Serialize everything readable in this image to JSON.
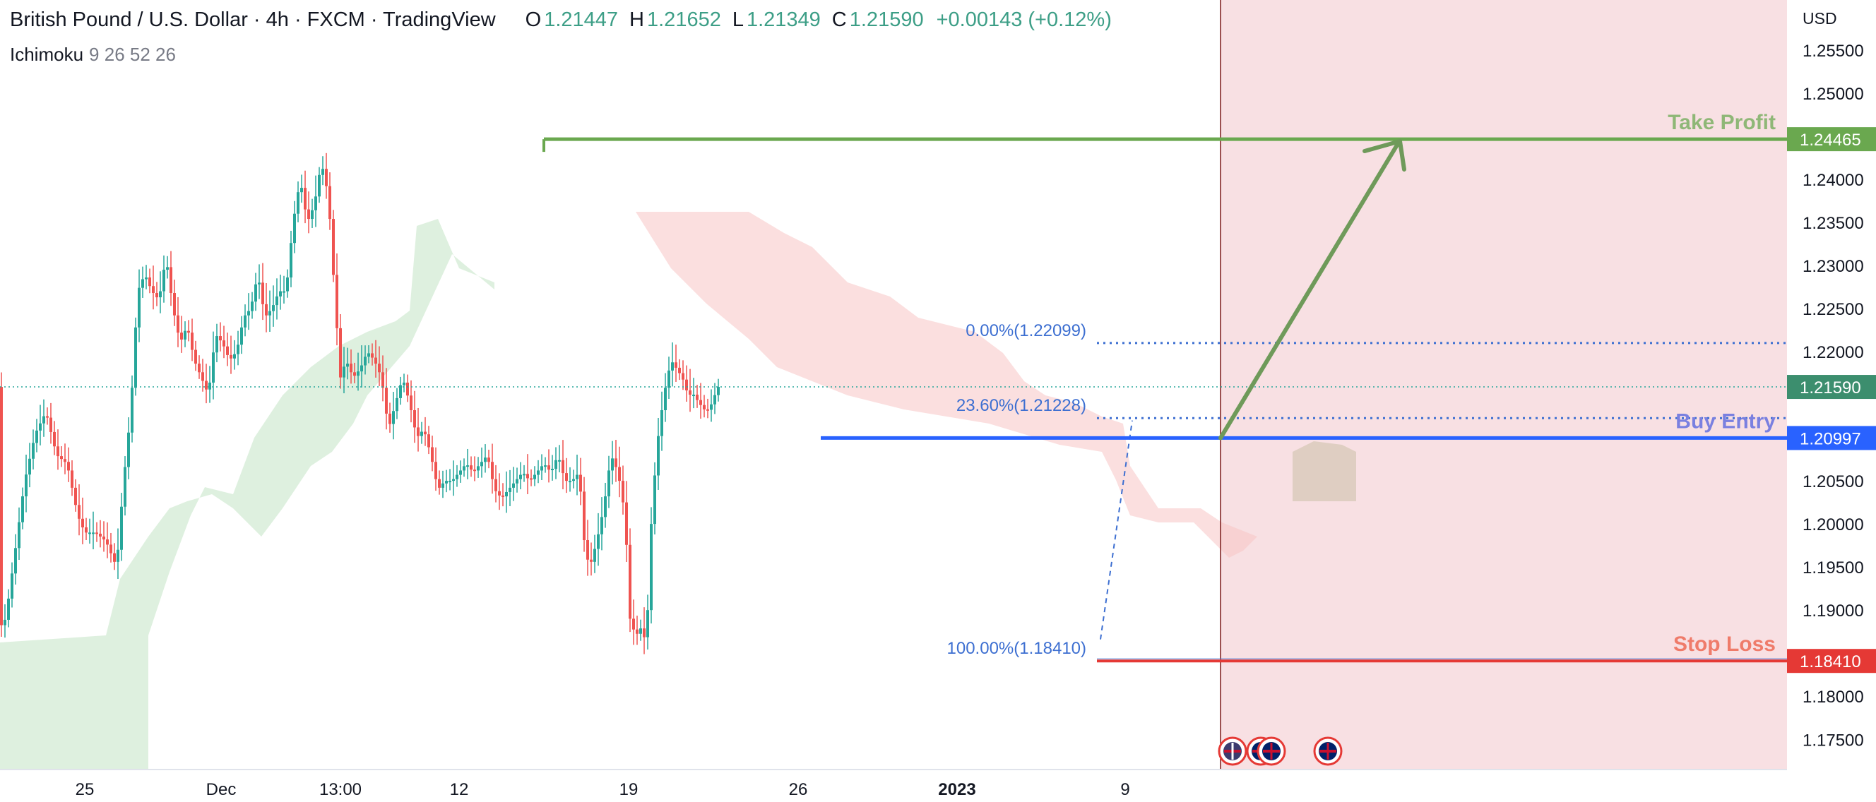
{
  "header": {
    "symbol": "British Pound / U.S. Dollar · 4h · FXCM · TradingView",
    "open_label": "O",
    "open": "1.21447",
    "high_label": "H",
    "high": "1.21652",
    "low_label": "L",
    "low": "1.21349",
    "close_label": "C",
    "close": "1.21590",
    "change": "+0.00143 (+0.12%)"
  },
  "indicator": {
    "name": "Ichimoku",
    "params": "9 26 52 26"
  },
  "colors": {
    "up": "#26a69a",
    "down": "#ef5350",
    "cloud_bull": "#c8e6c9",
    "cloud_bear": "#f8c4c4",
    "take_profit": "#6aa84f",
    "entry": "#2962ff",
    "stop": "#e53935",
    "fib": "#3d6fd1",
    "arrow": "#6f9a5a",
    "zone": "#f6d6da"
  },
  "chart_data": {
    "type": "candlestick",
    "y_axis": {
      "currency": "USD",
      "range": [
        1.1715,
        1.2608
      ],
      "ticks": [
        "1.25500",
        "1.25000",
        "1.24000",
        "1.23500",
        "1.23000",
        "1.22500",
        "1.22000",
        "1.20500",
        "1.20000",
        "1.19500",
        "1.19000",
        "1.18000",
        "1.17500"
      ]
    },
    "x_axis": {
      "ticks": [
        "25",
        "Dec",
        "13:00",
        "12",
        "19",
        "26",
        "2023",
        "9"
      ]
    },
    "levels": [
      {
        "label": "Take Profit",
        "value": "1.24465"
      },
      {
        "label": "Buy Entry",
        "value": "1.20997"
      },
      {
        "label": "Stop Loss",
        "value": "1.18410"
      }
    ],
    "current_price": "1.21590",
    "fibonacci": [
      {
        "label": "0.00%(1.22099)",
        "value": 1.22099
      },
      {
        "label": "23.60%(1.21228)",
        "value": 1.21228
      },
      {
        "label": "100.00%(1.18410)",
        "value": 1.1841
      }
    ],
    "price_path": [
      [
        0,
        1.188
      ],
      [
        8,
        1.189
      ],
      [
        20,
        1.196
      ],
      [
        35,
        1.205
      ],
      [
        50,
        1.2105
      ],
      [
        65,
        1.213
      ],
      [
        80,
        1.208
      ],
      [
        95,
        1.207
      ],
      [
        110,
        1.201
      ],
      [
        120,
        1.199
      ],
      [
        135,
        1.199
      ],
      [
        150,
        1.198
      ],
      [
        165,
        1.195
      ],
      [
        175,
        1.205
      ],
      [
        185,
        1.213
      ],
      [
        195,
        1.227
      ],
      [
        205,
        1.229
      ],
      [
        215,
        1.227
      ],
      [
        225,
        1.226
      ],
      [
        235,
        1.231
      ],
      [
        245,
        1.225
      ],
      [
        255,
        1.221
      ],
      [
        265,
        1.223
      ],
      [
        275,
        1.219
      ],
      [
        285,
        1.217
      ],
      [
        295,
        1.215
      ],
      [
        305,
        1.222
      ],
      [
        315,
        1.221
      ],
      [
        325,
        1.219
      ],
      [
        335,
        1.22
      ],
      [
        345,
        1.224
      ],
      [
        355,
        1.225
      ],
      [
        365,
        1.229
      ],
      [
        375,
        1.224
      ],
      [
        385,
        1.225
      ],
      [
        395,
        1.227
      ],
      [
        405,
        1.227
      ],
      [
        415,
        1.235
      ],
      [
        425,
        1.24
      ],
      [
        435,
        1.235
      ],
      [
        445,
        1.237
      ],
      [
        455,
        1.242
      ],
      [
        465,
        1.238
      ],
      [
        475,
        1.225
      ],
      [
        482,
        1.217
      ],
      [
        490,
        1.219
      ],
      [
        500,
        1.217
      ],
      [
        510,
        1.218
      ],
      [
        520,
        1.22
      ],
      [
        530,
        1.219
      ],
      [
        540,
        1.217
      ],
      [
        550,
        1.211
      ],
      [
        560,
        1.214
      ],
      [
        570,
        1.217
      ],
      [
        580,
        1.214
      ],
      [
        590,
        1.21
      ],
      [
        600,
        1.211
      ],
      [
        610,
        1.208
      ],
      [
        620,
        1.204
      ],
      [
        630,
        1.205
      ],
      [
        640,
        1.205
      ],
      [
        650,
        1.206
      ],
      [
        660,
        1.207
      ],
      [
        670,
        1.206
      ],
      [
        680,
        1.207
      ],
      [
        690,
        1.208
      ],
      [
        700,
        1.204
      ],
      [
        710,
        1.203
      ],
      [
        720,
        1.204
      ],
      [
        730,
        1.205
      ],
      [
        740,
        1.206
      ],
      [
        750,
        1.205
      ],
      [
        760,
        1.206
      ],
      [
        770,
        1.207
      ],
      [
        780,
        1.206
      ],
      [
        790,
        1.208
      ],
      [
        800,
        1.205
      ],
      [
        810,
        1.205
      ],
      [
        820,
        1.206
      ],
      [
        828,
        1.197
      ],
      [
        835,
        1.195
      ],
      [
        845,
        1.198
      ],
      [
        855,
        1.202
      ],
      [
        865,
        1.208
      ],
      [
        875,
        1.206
      ],
      [
        885,
        1.201
      ],
      [
        892,
        1.189
      ],
      [
        900,
        1.187
      ],
      [
        908,
        1.188
      ],
      [
        915,
        1.186
      ],
      [
        922,
        1.2
      ],
      [
        930,
        1.209
      ],
      [
        940,
        1.215
      ],
      [
        950,
        1.219
      ],
      [
        958,
        1.218
      ],
      [
        966,
        1.217
      ],
      [
        974,
        1.215
      ],
      [
        982,
        1.215
      ],
      [
        990,
        1.214
      ],
      [
        1000,
        1.213
      ],
      [
        1008,
        1.214
      ],
      [
        1016,
        1.2159
      ]
    ]
  }
}
